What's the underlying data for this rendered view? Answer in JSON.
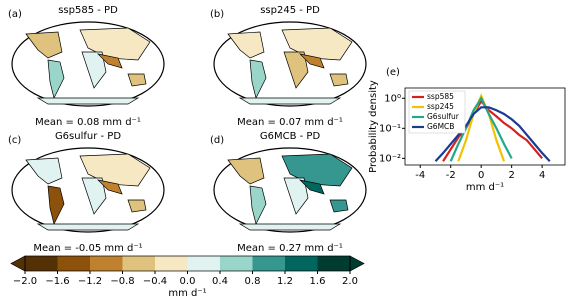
{
  "panels": [
    {
      "label": "(a)",
      "title": "ssp585 - PD",
      "mean": "Mean = 0.08 mm d⁻¹"
    },
    {
      "label": "(b)",
      "title": "ssp245 - PD",
      "mean": "Mean = 0.07 mm d⁻¹"
    },
    {
      "label": "(c)",
      "title": "G6sulfur - PD",
      "mean": "Mean = -0.05 mm d⁻¹"
    },
    {
      "label": "(d)",
      "title": "G6MCB - PD",
      "mean": "Mean = 0.27 mm d⁻¹"
    }
  ],
  "colorbar": {
    "label": "mm d⁻¹",
    "ticks": [
      {
        "value": -2,
        "label": "−2.0"
      },
      {
        "value": -1.6,
        "label": "−1.6"
      },
      {
        "value": -1.2,
        "label": "−1.2"
      },
      {
        "value": -0.8,
        "label": "−0.8"
      },
      {
        "value": -0.4,
        "label": "−0.4"
      },
      {
        "value": 0,
        "label": "0.0"
      },
      {
        "value": 0.4,
        "label": "0.4"
      },
      {
        "value": 0.8,
        "label": "0.8"
      },
      {
        "value": 1.2,
        "label": "1.2"
      },
      {
        "value": 1.6,
        "label": "1.6"
      },
      {
        "value": 2,
        "label": "2.0"
      }
    ],
    "colors": [
      "#543005",
      "#8c510a",
      "#bf812d",
      "#dfc27d",
      "#f6e8c3",
      "#e0f3f0",
      "#99d5c9",
      "#35978f",
      "#01665e",
      "#003c30"
    ]
  },
  "chart_data": {
    "type": "line",
    "panel_label": "(e)",
    "x_label": "mm d⁻¹",
    "y_label": "Probability density",
    "x": [
      -3,
      -2.5,
      -2,
      -1.5,
      -1,
      -0.5,
      0,
      0.5,
      1,
      1.5,
      2,
      2.5,
      3,
      3.5,
      4,
      4.5,
      5
    ],
    "series": [
      {
        "name": "ssp585",
        "color": "#d62020",
        "values": [
          null,
          0.008,
          0.02,
          0.05,
          0.1,
          0.3,
          0.8,
          0.4,
          0.25,
          0.15,
          0.1,
          0.06,
          0.04,
          0.02,
          0.01,
          null,
          null
        ]
      },
      {
        "name": "ssp245",
        "color": "#f2c200",
        "values": [
          null,
          null,
          null,
          0.008,
          0.04,
          0.3,
          1.2,
          0.3,
          0.04,
          0.008,
          null,
          null,
          null,
          null,
          null,
          null,
          null
        ]
      },
      {
        "name": "G6sulfur",
        "color": "#1fa98a",
        "values": [
          null,
          null,
          0.008,
          0.03,
          0.1,
          0.4,
          1.0,
          0.3,
          0.1,
          0.03,
          0.01,
          null,
          null,
          null,
          null,
          null,
          null
        ]
      },
      {
        "name": "G6MCB",
        "color": "#1b3a94",
        "values": [
          0.008,
          0.015,
          0.03,
          0.06,
          0.12,
          0.3,
          0.5,
          0.5,
          0.4,
          0.3,
          0.2,
          0.12,
          0.06,
          0.03,
          0.015,
          0.008,
          null
        ]
      }
    ],
    "xlim": [
      -5,
      5.5
    ],
    "xticks": [
      -4,
      -2,
      0,
      2,
      4
    ],
    "ylim": [
      0.006,
      2.2
    ],
    "yticks": [
      {
        "value": 1,
        "label": "10⁰"
      },
      {
        "value": 0.1,
        "label": "10⁻¹"
      },
      {
        "value": 0.01,
        "label": "10⁻²"
      }
    ],
    "log_y": true,
    "legend": "upper left"
  }
}
